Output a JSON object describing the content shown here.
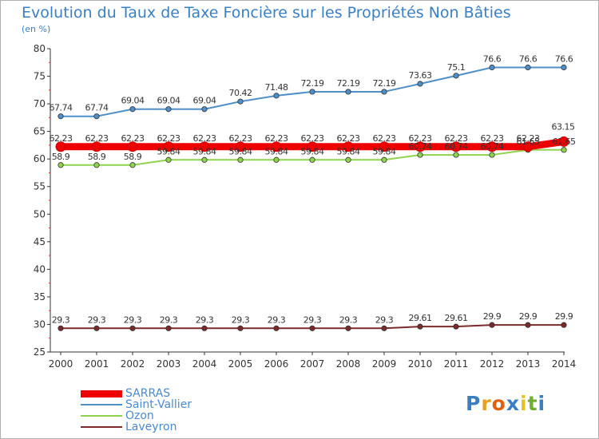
{
  "chart_data": {
    "type": "line",
    "title": "Evolution du Taux de Taxe Foncière sur les Propriétés Non Bâties",
    "ylabel": "(en %)",
    "xlabel": "",
    "categories": [
      "2000",
      "2001",
      "2002",
      "2003",
      "2004",
      "2005",
      "2006",
      "2007",
      "2008",
      "2009",
      "2010",
      "2011",
      "2012",
      "2013",
      "2014"
    ],
    "ylim": [
      25,
      80
    ],
    "yticks": [
      25,
      30,
      35,
      40,
      45,
      50,
      55,
      60,
      65,
      70,
      75,
      80
    ],
    "grid": false,
    "legend_position": "bottom-left",
    "series": [
      {
        "name": "SARRAS",
        "color": "#ee0000",
        "values": [
          62.23,
          62.23,
          62.23,
          62.23,
          62.23,
          62.23,
          62.23,
          62.23,
          62.23,
          62.23,
          62.23,
          62.23,
          62.23,
          62.23,
          63.15
        ],
        "labels": [
          "62.23",
          "62.23",
          "62.23",
          "62.23",
          "62.23",
          "62.23",
          "62.23",
          "62.23",
          "62.23",
          "62.23",
          "62.23",
          "62.23",
          "62.23",
          "62.23",
          "63.15"
        ]
      },
      {
        "name": "Saint-Vallier",
        "color": "#4f8fc8",
        "values": [
          67.74,
          67.74,
          69.04,
          69.04,
          69.04,
          70.42,
          71.48,
          72.19,
          72.19,
          72.19,
          73.63,
          75.1,
          76.6,
          76.6,
          76.6
        ],
        "labels": [
          "67.74",
          "67.74",
          "69.04",
          "69.04",
          "69.04",
          "70.42",
          "71.48",
          "72.19",
          "72.19",
          "72.19",
          "73.63",
          "75.1",
          "76.6",
          "76.6",
          "76.6"
        ]
      },
      {
        "name": "Ozon",
        "color": "#8fd44f",
        "values": [
          58.9,
          58.9,
          58.9,
          59.84,
          59.84,
          59.84,
          59.84,
          59.84,
          59.84,
          59.84,
          60.74,
          60.74,
          60.74,
          61.65,
          61.65
        ],
        "labels": [
          "58.9",
          "58.9",
          "58.9",
          "59.84",
          "59.84",
          "59.84",
          "59.84",
          "59.84",
          "59.84",
          "59.84",
          "60.74",
          "60.74",
          "60.74",
          "61.65",
          "61.65"
        ]
      },
      {
        "name": "Laveyron",
        "color": "#7a2a2a",
        "values": [
          29.3,
          29.3,
          29.3,
          29.3,
          29.3,
          29.3,
          29.3,
          29.3,
          29.3,
          29.3,
          29.61,
          29.61,
          29.9,
          29.9,
          29.9
        ],
        "labels": [
          "29.3",
          "29.3",
          "29.3",
          "29.3",
          "29.3",
          "29.3",
          "29.3",
          "29.3",
          "29.3",
          "29.3",
          "29.61",
          "29.61",
          "29.9",
          "29.9",
          "29.9"
        ]
      }
    ]
  },
  "logo": {
    "letters": [
      "P",
      "r",
      "o",
      "x",
      "i",
      "t",
      "i"
    ],
    "colors": [
      "#3a7fc2",
      "#e8a020",
      "#e06010",
      "#3a7fc2",
      "#e8c020",
      "#70b030",
      "#3a7fc2"
    ]
  }
}
